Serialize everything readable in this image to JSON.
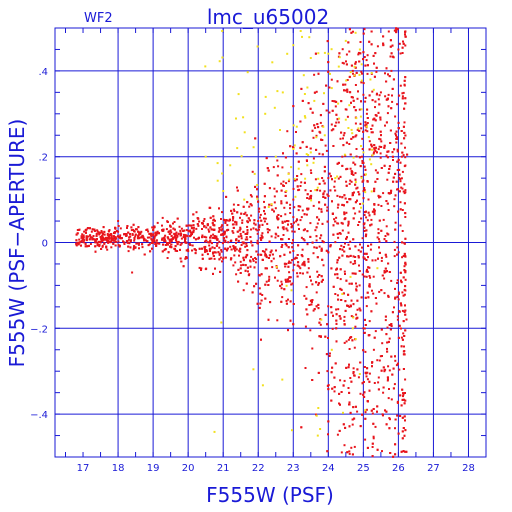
{
  "chart_data": {
    "type": "scatter",
    "panel_label": "WF2",
    "title": "lmc_u65002",
    "xlabel": "F555W (PSF)",
    "ylabel": "F555W (PSF−APERTURE)",
    "xlim": [
      16.2,
      28.5
    ],
    "ylim": [
      -0.5,
      0.5
    ],
    "grid": true,
    "x_ticks": [
      17,
      18,
      19,
      20,
      21,
      22,
      23,
      24,
      25,
      26,
      27,
      28
    ],
    "x_gridlines": [
      18,
      19,
      20,
      21,
      22,
      23,
      24,
      25,
      26,
      27,
      28
    ],
    "y_ticks": [
      -0.4,
      -0.2,
      0,
      0.2,
      0.4
    ],
    "y_gridlines": [
      -0.4,
      -0.2,
      0,
      0.2,
      0.4
    ],
    "x_minor_step": 0.5,
    "y_minor_step": 0.05,
    "colors": {
      "axes": "#1a1ad6",
      "series_red": "#e8141c",
      "series_yellow": "#f2e01e",
      "background": "#ffffff"
    },
    "series": [
      {
        "color": "red",
        "point_count": 4200,
        "points": [
          [
            16.9,
            0.03
          ],
          [
            17.5,
            0.0
          ],
          [
            18.0,
            0.05
          ],
          [
            18.1,
            0.01
          ],
          [
            18.3,
            -0.02
          ],
          [
            18.4,
            -0.07
          ],
          [
            18.6,
            0.01
          ],
          [
            18.9,
            0.02
          ],
          [
            19.1,
            0.0
          ],
          [
            19.3,
            0.03
          ],
          [
            19.5,
            -0.01
          ],
          [
            19.8,
            0.02
          ],
          [
            20.0,
            -0.02
          ],
          [
            20.3,
            0.01
          ],
          [
            20.6,
            0.0
          ],
          [
            20.9,
            0.03
          ],
          [
            21.2,
            -0.01
          ],
          [
            21.5,
            0.02
          ],
          [
            21.8,
            0.0
          ],
          [
            22.0,
            0.05
          ],
          [
            22.2,
            -0.03
          ],
          [
            22.5,
            0.08
          ],
          [
            22.8,
            -0.05
          ],
          [
            23.0,
            0.1
          ],
          [
            23.2,
            -0.06
          ],
          [
            23.5,
            0.12
          ],
          [
            23.7,
            -0.08
          ],
          [
            24.0,
            0.15
          ],
          [
            24.2,
            -0.12
          ],
          [
            24.4,
            0.2
          ],
          [
            24.6,
            -0.15
          ],
          [
            24.8,
            0.25
          ],
          [
            25.0,
            -0.2
          ],
          [
            25.1,
            0.3
          ],
          [
            25.3,
            -0.25
          ],
          [
            25.5,
            0.35
          ],
          [
            25.6,
            -0.3
          ],
          [
            25.8,
            0.4
          ],
          [
            25.9,
            -0.33
          ],
          [
            26.0,
            0.45
          ],
          [
            26.1,
            0.2
          ],
          [
            26.2,
            0.48
          ],
          [
            25.1,
            -0.39
          ],
          [
            24.7,
            0.4
          ],
          [
            24.3,
            0.28
          ]
        ]
      },
      {
        "color": "yellow",
        "point_count": 110,
        "points": [
          [
            20.5,
            0.2
          ],
          [
            21.0,
            0.12
          ],
          [
            21.4,
            0.22
          ],
          [
            21.6,
            0.1
          ],
          [
            21.9,
            0.16
          ],
          [
            22.2,
            0.3
          ],
          [
            22.4,
            0.42
          ],
          [
            22.5,
            0.2
          ],
          [
            22.7,
            0.35
          ],
          [
            22.8,
            0.12
          ],
          [
            23.0,
            0.46
          ],
          [
            23.1,
            0.27
          ],
          [
            23.3,
            0.39
          ],
          [
            23.4,
            0.18
          ],
          [
            23.5,
            0.43
          ],
          [
            23.6,
            0.33
          ],
          [
            23.7,
            -0.45
          ],
          [
            23.9,
            0.25
          ],
          [
            24.0,
            0.44
          ],
          [
            24.1,
            0.36
          ],
          [
            24.2,
            0.15
          ],
          [
            24.3,
            0.41
          ],
          [
            24.4,
            -0.12
          ],
          [
            24.5,
            0.47
          ],
          [
            24.6,
            0.32
          ],
          [
            24.7,
            -0.2
          ],
          [
            24.8,
            0.29
          ],
          [
            24.9,
            0.45
          ],
          [
            25.0,
            0.21
          ],
          [
            25.2,
            0.38
          ],
          [
            25.4,
            -0.06
          ],
          [
            23.8,
            -0.18
          ],
          [
            24.1,
            -0.25
          ],
          [
            23.5,
            0.21
          ],
          [
            21.2,
            0.18
          ]
        ]
      }
    ]
  }
}
